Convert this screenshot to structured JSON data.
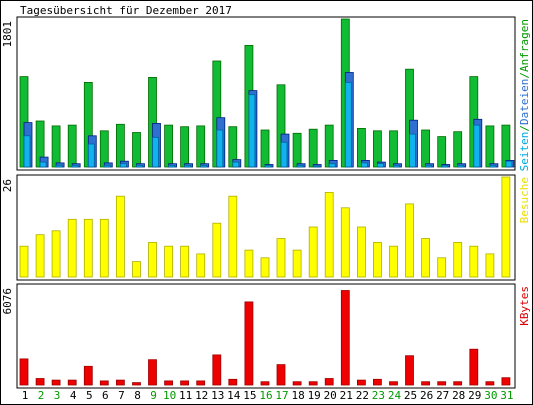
{
  "chart_data": {
    "type": "bar",
    "title": "Tagesübersicht für Dezember 2017",
    "days": [
      "1",
      "2",
      "3",
      "4",
      "5",
      "6",
      "7",
      "8",
      "9",
      "10",
      "11",
      "12",
      "13",
      "14",
      "15",
      "16",
      "17",
      "18",
      "19",
      "20",
      "21",
      "22",
      "23",
      "24",
      "25",
      "26",
      "27",
      "28",
      "29",
      "30",
      "31"
    ],
    "weekend_days": [
      "2",
      "3",
      "9",
      "10",
      "16",
      "17",
      "23",
      "24",
      "30",
      "31"
    ],
    "day_label_color_weekday": "#000000",
    "day_label_color_weekend": "#009900",
    "panels": [
      {
        "id": "top",
        "y_max_label": "1801",
        "ylim": [
          0,
          1801
        ],
        "legend": [
          {
            "text": "Seiten",
            "color": "#00a8e0"
          },
          {
            "text": "/",
            "color": "#009900"
          },
          {
            "text": "Dateien",
            "color": "#2f6fd0"
          },
          {
            "text": "/",
            "color": "#009900"
          },
          {
            "text": "Anfragen",
            "color": "#009900"
          }
        ],
        "series": [
          {
            "name": "Anfragen",
            "color": "#11bb33",
            "values": [
              1100,
              560,
              500,
              510,
              1030,
              440,
              520,
              420,
              1090,
              510,
              490,
              500,
              1290,
              490,
              1480,
              450,
              1000,
              410,
              460,
              510,
              1801,
              470,
              440,
              440,
              1190,
              450,
              370,
              430,
              1100,
              500,
              510
            ]
          },
          {
            "name": "Dateien",
            "color": "#2f6fd0",
            "values": [
              540,
              120,
              50,
              40,
              380,
              50,
              70,
              40,
              530,
              40,
              40,
              40,
              600,
              90,
              930,
              30,
              400,
              40,
              30,
              80,
              1150,
              80,
              60,
              40,
              570,
              40,
              30,
              40,
              580,
              40,
              80
            ]
          },
          {
            "name": "Seiten",
            "color": "#12b2ee",
            "values": [
              380,
              60,
              20,
              20,
              280,
              20,
              40,
              20,
              360,
              20,
              20,
              20,
              450,
              60,
              880,
              20,
              300,
              20,
              10,
              40,
              1030,
              50,
              40,
              20,
              400,
              20,
              20,
              20,
              510,
              20,
              70
            ]
          }
        ]
      },
      {
        "id": "middle",
        "y_max_label": "26",
        "ylim": [
          0,
          26
        ],
        "legend": [
          {
            "text": "Besuche",
            "color": "#e8e000"
          }
        ],
        "series": [
          {
            "name": "Besuche",
            "color": "#ffff00",
            "values": [
              8,
              11,
              12,
              15,
              15,
              15,
              21,
              4,
              9,
              8,
              8,
              6,
              14,
              21,
              7,
              5,
              10,
              7,
              13,
              22,
              18,
              13,
              9,
              8,
              19,
              10,
              5,
              9,
              8,
              6,
              26
            ]
          }
        ]
      },
      {
        "id": "bottom",
        "y_max_label": "6076",
        "ylim": [
          0,
          6076
        ],
        "legend": [
          {
            "text": "KBytes",
            "color": "#dd0000"
          }
        ],
        "series": [
          {
            "name": "KBytes",
            "color": "#ee0000",
            "values": [
              1600,
              400,
              300,
              300,
              1150,
              250,
              300,
              150,
              1550,
              250,
              250,
              250,
              1850,
              350,
              5100,
              200,
              1250,
              200,
              200,
              400,
              5800,
              300,
              350,
              200,
              1800,
              200,
              200,
              200,
              2200,
              200,
              450
            ]
          }
        ]
      }
    ]
  }
}
